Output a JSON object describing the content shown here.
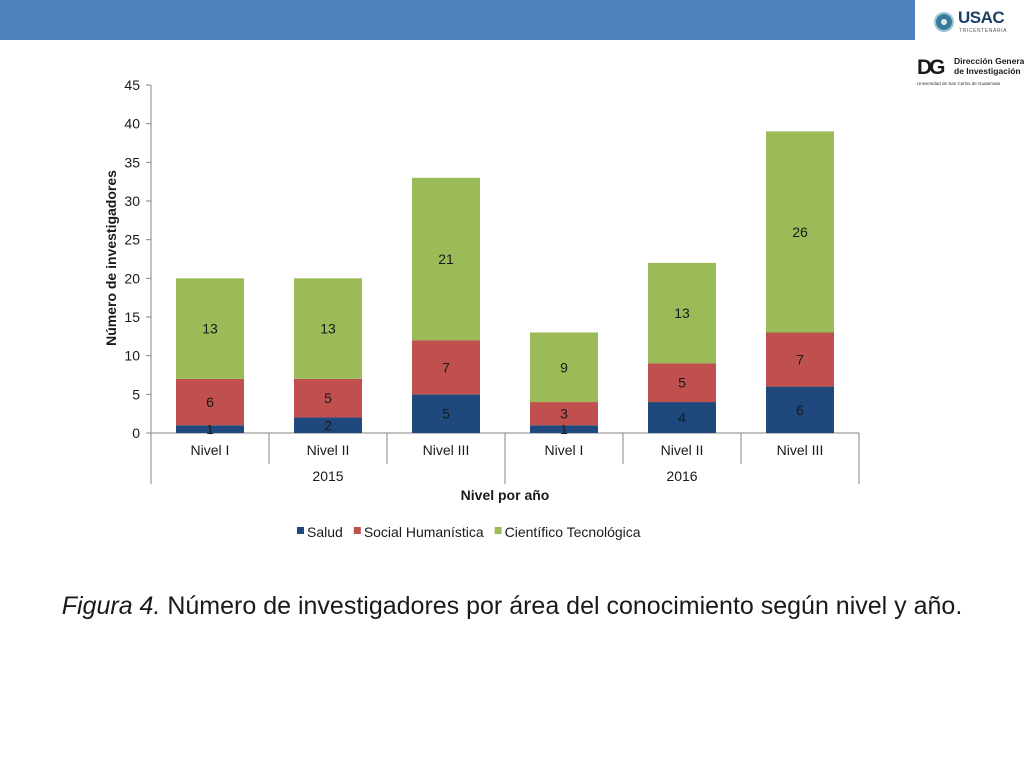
{
  "header": {
    "bar_color": "#4f81bd"
  },
  "logos": {
    "usac": {
      "name": "USAC",
      "sub": "TRICENTENARIA"
    },
    "dg": {
      "mark": "DG",
      "line1": "Dirección General",
      "line2": "de Investigación",
      "line3": "Universidad de San Carlos de Guatemala"
    }
  },
  "chart_data": {
    "type": "bar",
    "stacked": true,
    "categories": [
      "Nivel I",
      "Nivel II",
      "Nivel III",
      "Nivel I",
      "Nivel II",
      "Nivel III"
    ],
    "groups": [
      {
        "label": "2015",
        "categories": [
          "Nivel I",
          "Nivel II",
          "Nivel III"
        ]
      },
      {
        "label": "2016",
        "categories": [
          "Nivel I",
          "Nivel II",
          "Nivel III"
        ]
      }
    ],
    "series": [
      {
        "name": "Salud",
        "color": "#1f497d",
        "values": [
          1,
          2,
          5,
          1,
          4,
          6
        ]
      },
      {
        "name": "Social Humanística",
        "color": "#c0504d",
        "values": [
          6,
          5,
          7,
          3,
          5,
          7
        ]
      },
      {
        "name": "Científico Tecnológica",
        "color": "#9bbb59",
        "values": [
          13,
          13,
          21,
          9,
          13,
          26
        ]
      }
    ],
    "xlabel": "Nivel por año",
    "ylabel": "Número de investigadores",
    "ylim": [
      0,
      45
    ],
    "yticks": [
      0,
      5,
      10,
      15,
      20,
      25,
      30,
      35,
      40,
      45
    ],
    "grid": false,
    "legend_position": "bottom"
  },
  "caption": {
    "lead": "Figura 4.",
    "text": " Número de investigadores por área del conocimiento según nivel y año."
  }
}
